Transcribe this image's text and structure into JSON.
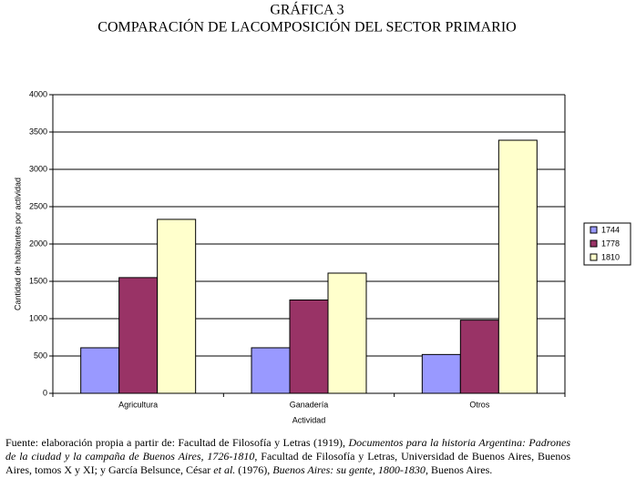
{
  "chart_data": {
    "type": "bar",
    "title": "GRÁFICA 3",
    "subtitle": "COMPARACIÓN DE LACOMPOSICIÓN DEL SECTOR PRIMARIO",
    "x_label": "Actividad",
    "y_label": "Cantidad de habitantes por actividad",
    "categories": [
      "Agricultura",
      "Ganadería",
      "Otros"
    ],
    "series": [
      {
        "name": "1744",
        "color": "#9999ff",
        "values": [
          610,
          610,
          520
        ]
      },
      {
        "name": "1778",
        "color": "#993366",
        "values": [
          1550,
          1250,
          980
        ]
      },
      {
        "name": "1810",
        "color": "#ffffcc",
        "values": [
          2330,
          1610,
          3390
        ]
      }
    ],
    "ylim": [
      0,
      4000
    ],
    "yticks": [
      0,
      500,
      1000,
      1500,
      2000,
      2500,
      3000,
      3500,
      4000
    ],
    "grid": true,
    "legend": "right",
    "source": [
      {
        "text": "Fuente: elaboración propia a partir de: Facultad de Filosofía y Letras (1919), ",
        "italic": false
      },
      {
        "text": "Documentos para la historia Argentina: Padrones de la ciudad y la campaña de Buenos Aires, 1726-1810",
        "italic": true
      },
      {
        "text": ", Facultad de Filosofía y Letras, Universidad de Buenos Aires, Buenos Aires, tomos X y XI; y García Belsunce, César ",
        "italic": false
      },
      {
        "text": "et al.",
        "italic": true
      },
      {
        "text": " (1976), ",
        "italic": false
      },
      {
        "text": "Buenos Aires: su gente, 1800-1830",
        "italic": true
      },
      {
        "text": ", Buenos Aires.",
        "italic": false
      }
    ]
  }
}
